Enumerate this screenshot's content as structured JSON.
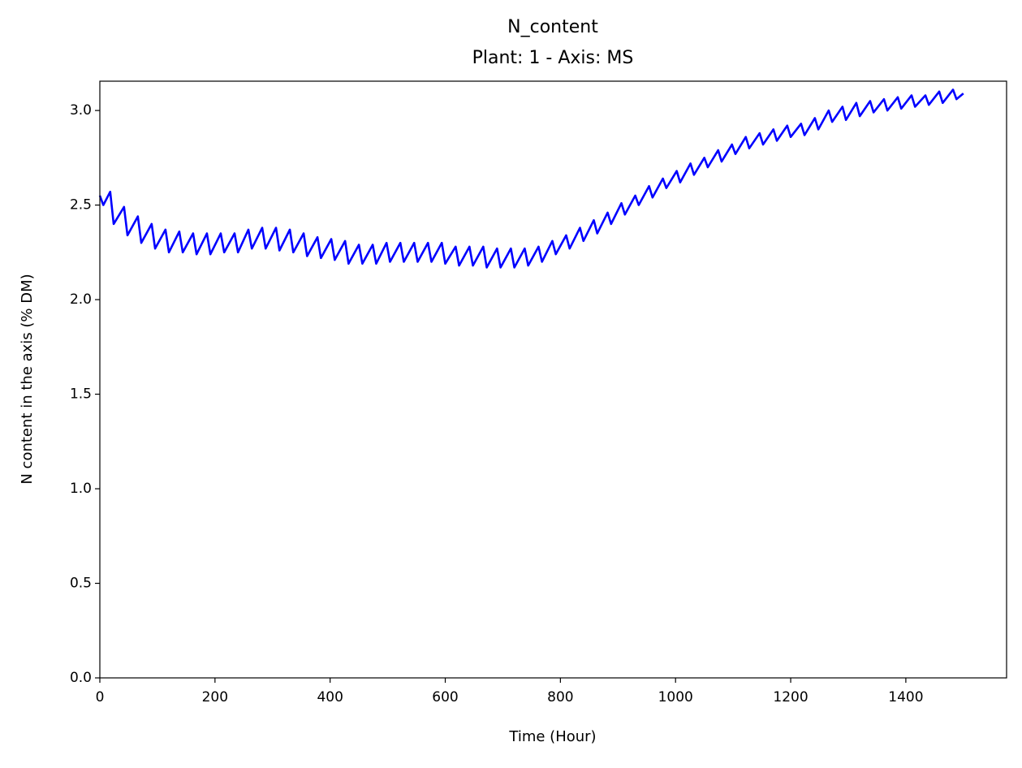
{
  "chart_data": {
    "type": "line",
    "title": "N_content",
    "subtitle": "Plant: 1 - Axis: MS",
    "x_label": "Time (Hour)",
    "y_label": "N content in the axis (% DM)",
    "x": [
      0,
      6,
      18,
      24,
      42,
      48,
      66,
      72,
      90,
      96,
      114,
      120,
      138,
      144,
      162,
      168,
      186,
      192,
      210,
      216,
      234,
      240,
      258,
      264,
      282,
      288,
      306,
      312,
      330,
      336,
      354,
      360,
      378,
      384,
      402,
      408,
      426,
      432,
      450,
      456,
      474,
      480,
      498,
      504,
      522,
      528,
      546,
      552,
      570,
      576,
      594,
      600,
      618,
      624,
      642,
      648,
      666,
      672,
      690,
      696,
      714,
      720,
      738,
      744,
      762,
      768,
      786,
      792,
      810,
      816,
      834,
      840,
      858,
      864,
      882,
      888,
      906,
      912,
      930,
      936,
      954,
      960,
      978,
      984,
      1002,
      1008,
      1026,
      1032,
      1050,
      1056,
      1074,
      1080,
      1098,
      1104,
      1122,
      1128,
      1146,
      1152,
      1170,
      1176,
      1194,
      1200,
      1218,
      1224,
      1242,
      1248,
      1266,
      1272,
      1290,
      1296,
      1314,
      1320,
      1338,
      1344,
      1362,
      1368,
      1386,
      1392,
      1410,
      1416,
      1434,
      1440,
      1458,
      1464,
      1482,
      1488,
      1500
    ],
    "series": [
      {
        "name": "N_content",
        "color": "#0000ff",
        "values": [
          2.55,
          2.5,
          2.57,
          2.4,
          2.49,
          2.34,
          2.44,
          2.3,
          2.4,
          2.27,
          2.37,
          2.25,
          2.36,
          2.25,
          2.35,
          2.24,
          2.35,
          2.24,
          2.35,
          2.25,
          2.35,
          2.25,
          2.37,
          2.27,
          2.38,
          2.27,
          2.38,
          2.26,
          2.37,
          2.25,
          2.35,
          2.23,
          2.33,
          2.22,
          2.32,
          2.21,
          2.31,
          2.19,
          2.29,
          2.19,
          2.29,
          2.19,
          2.3,
          2.2,
          2.3,
          2.2,
          2.3,
          2.2,
          2.3,
          2.2,
          2.3,
          2.19,
          2.28,
          2.18,
          2.28,
          2.18,
          2.28,
          2.17,
          2.27,
          2.17,
          2.27,
          2.17,
          2.27,
          2.18,
          2.28,
          2.2,
          2.31,
          2.24,
          2.34,
          2.27,
          2.38,
          2.31,
          2.42,
          2.35,
          2.46,
          2.4,
          2.51,
          2.45,
          2.55,
          2.5,
          2.6,
          2.54,
          2.64,
          2.59,
          2.68,
          2.62,
          2.72,
          2.66,
          2.75,
          2.7,
          2.79,
          2.73,
          2.82,
          2.77,
          2.86,
          2.8,
          2.88,
          2.82,
          2.9,
          2.84,
          2.92,
          2.86,
          2.93,
          2.87,
          2.96,
          2.9,
          3.0,
          2.94,
          3.02,
          2.95,
          3.04,
          2.97,
          3.05,
          2.99,
          3.06,
          3.0,
          3.07,
          3.01,
          3.08,
          3.02,
          3.08,
          3.03,
          3.1,
          3.04,
          3.11,
          3.06,
          3.09
        ]
      }
    ],
    "xlim": [
      0,
      1575
    ],
    "ylim": [
      0,
      3.155
    ],
    "xticks": [
      0,
      200,
      400,
      600,
      800,
      1000,
      1200,
      1400
    ],
    "yticks": [
      {
        "value": 0,
        "label": "0.0"
      },
      0.5,
      {
        "value": 1,
        "label": "1.0"
      },
      1.5,
      {
        "value": 2,
        "label": "2.0"
      },
      2.5,
      {
        "value": 3,
        "label": "3.0"
      }
    ],
    "grid": false
  }
}
